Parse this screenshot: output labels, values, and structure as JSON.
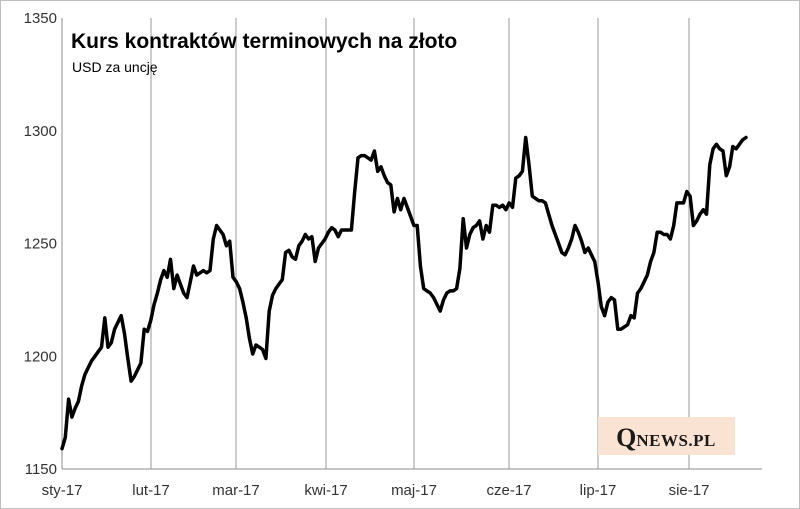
{
  "chart_data": {
    "type": "line",
    "title": "Kurs kontraktów terminowych na złoto",
    "subtitle": "USD za uncję",
    "xlabel": "",
    "ylabel": "",
    "ylim": [
      1150,
      1350
    ],
    "y_ticks": [
      "1350",
      "1300",
      "1250",
      "1200",
      "1150"
    ],
    "x_ticks": [
      "sty-17",
      "lut-17",
      "mar-17",
      "kwi-17",
      "maj-17",
      "cze-17",
      "lip-17",
      "sie-17"
    ],
    "grid": "vertical",
    "legend": "none",
    "line_color": "#000000",
    "series": [
      {
        "values": [
          1159,
          1164,
          1181,
          1173,
          1177,
          1180,
          1187,
          1192,
          1195,
          1198,
          1200,
          1202,
          1204,
          1217,
          1204,
          1206,
          1212,
          1215,
          1218,
          1210,
          1199,
          1189,
          1191,
          1194,
          1197,
          1212,
          1211,
          1216,
          1223,
          1228,
          1234,
          1238,
          1235,
          1243,
          1230,
          1236,
          1232,
          1228,
          1226,
          1233,
          1240,
          1236,
          1237,
          1238,
          1237,
          1238,
          1252,
          1258,
          1256,
          1254,
          1249,
          1251,
          1235,
          1233,
          1230,
          1224,
          1217,
          1208,
          1201,
          1205,
          1204,
          1203,
          1199,
          1220,
          1227,
          1230,
          1232,
          1234,
          1246,
          1247,
          1244,
          1243,
          1249,
          1251,
          1254,
          1252,
          1253,
          1242,
          1248,
          1250,
          1252,
          1255,
          1257,
          1256,
          1253,
          1256,
          1256,
          1256,
          1256,
          1273,
          1288,
          1289,
          1289,
          1288,
          1287,
          1291,
          1282,
          1284,
          1280,
          1277,
          1276,
          1264,
          1270,
          1265,
          1270,
          1266,
          1262,
          1258,
          1258,
          1240,
          1230,
          1229,
          1228,
          1226,
          1223,
          1220,
          1225,
          1228,
          1229,
          1229,
          1230,
          1239,
          1261,
          1248,
          1254,
          1257,
          1258,
          1260,
          1252,
          1258,
          1255,
          1267,
          1267,
          1266,
          1267,
          1265,
          1268,
          1266,
          1279,
          1280,
          1282,
          1297,
          1285,
          1271,
          1270,
          1269,
          1269,
          1268,
          1263,
          1258,
          1254,
          1250,
          1246,
          1245,
          1248,
          1252,
          1258,
          1255,
          1251,
          1246,
          1248,
          1245,
          1242,
          1233,
          1222,
          1218,
          1224,
          1226,
          1225,
          1212,
          1212,
          1213,
          1214,
          1218,
          1217,
          1228,
          1230,
          1233,
          1236,
          1242,
          1246,
          1255,
          1255,
          1254,
          1254,
          1252,
          1258,
          1268,
          1268,
          1268,
          1273,
          1271,
          1258,
          1260,
          1263,
          1265,
          1263,
          1285,
          1292,
          1294,
          1292,
          1291,
          1280,
          1284,
          1293,
          1292,
          1294,
          1296,
          1297
        ]
      }
    ]
  },
  "logo": {
    "initial": "Q",
    "rest": "NEWS.PL",
    "background": "#fbe3d3"
  }
}
